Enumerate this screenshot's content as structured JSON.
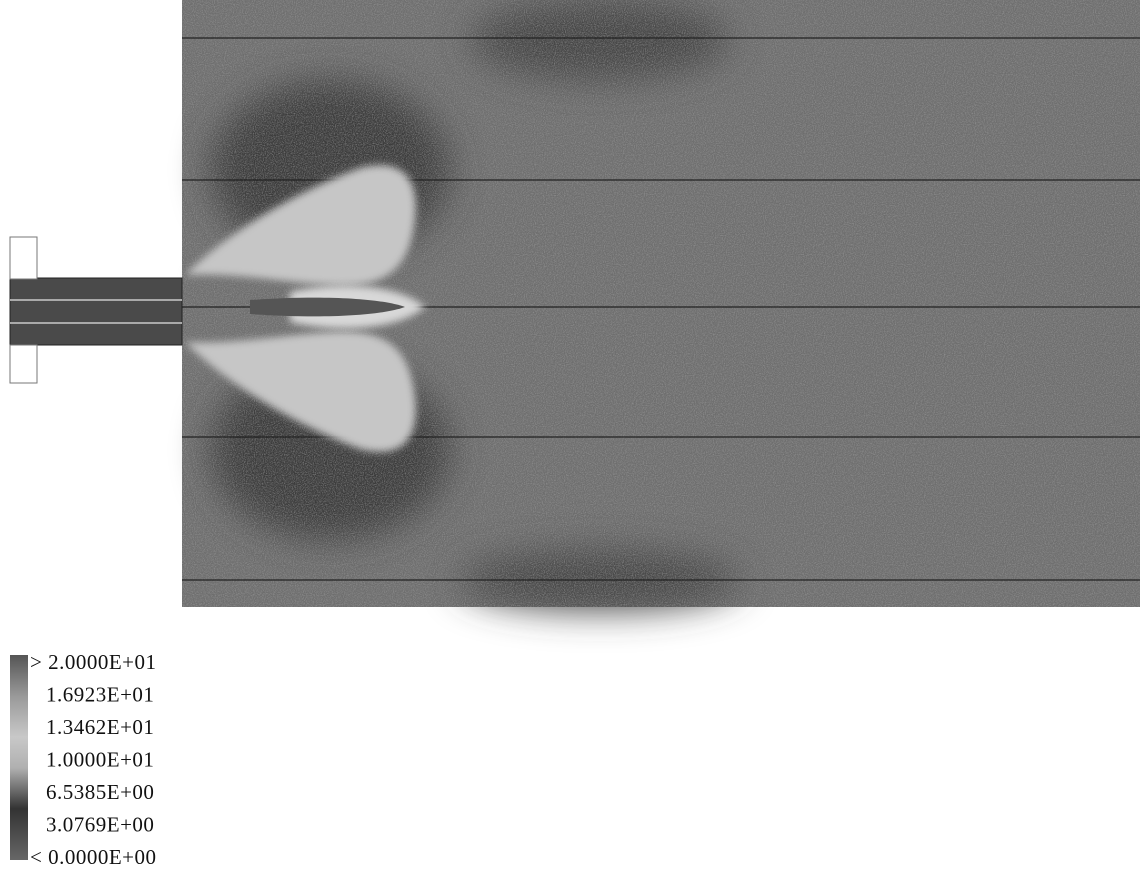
{
  "legend": {
    "labels": [
      "> 2.0000E+01",
      "1.6923E+01",
      "1.3462E+01",
      "1.0000E+01",
      "6.5385E+00",
      "3.0769E+00",
      "< 0.0000E+00"
    ]
  }
}
